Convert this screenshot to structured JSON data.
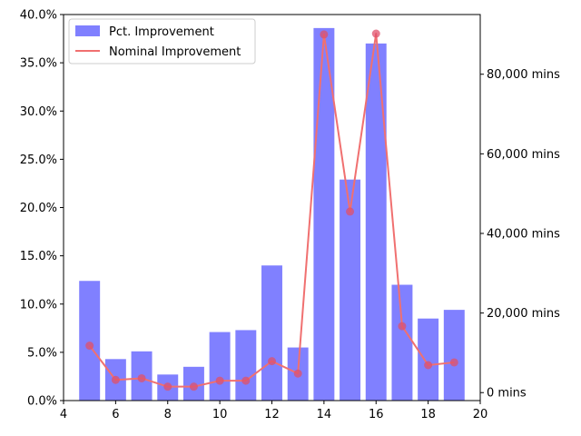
{
  "chart_data": {
    "type": "bar",
    "title": "",
    "xlabel": "",
    "ylabel": "",
    "xlim": [
      4,
      20
    ],
    "x_ticks": [
      4,
      6,
      8,
      10,
      12,
      14,
      16,
      18,
      20
    ],
    "y_left": {
      "lim": [
        0,
        0.4
      ],
      "ticks": [
        0,
        0.05,
        0.1,
        0.15,
        0.2,
        0.25,
        0.3,
        0.35,
        0.4
      ],
      "tick_labels": [
        "0.0%",
        "5.0%",
        "10.0%",
        "15.0%",
        "20.0%",
        "25.0%",
        "30.0%",
        "35.0%",
        "40.0%"
      ]
    },
    "y_right": {
      "lim": [
        -2000,
        95000
      ],
      "ticks": [
        0,
        20000,
        40000,
        60000,
        80000
      ],
      "tick_labels": [
        "0 mins",
        "20,000 mins",
        "40,000 mins",
        "60,000 mins",
        "80,000 mins"
      ]
    },
    "legend_position": "top-left",
    "x": [
      5,
      6,
      7,
      8,
      9,
      10,
      11,
      12,
      13,
      14,
      15,
      16,
      17,
      18,
      19
    ],
    "series": [
      {
        "name": "Pct. Improvement",
        "type": "bar",
        "axis": "left",
        "color": "#8080ff",
        "values": [
          0.124,
          0.043,
          0.051,
          0.027,
          0.035,
          0.071,
          0.073,
          0.14,
          0.055,
          0.386,
          0.229,
          0.37,
          0.12,
          0.085,
          0.094
        ]
      },
      {
        "name": "Nominal Improvement",
        "type": "line",
        "axis": "right",
        "color": "#f07070",
        "marker_color": "#e0506a",
        "values": [
          11800,
          3200,
          3600,
          1500,
          1500,
          3000,
          3000,
          7900,
          4800,
          90000,
          45500,
          90200,
          16700,
          6900,
          7600
        ]
      }
    ]
  }
}
